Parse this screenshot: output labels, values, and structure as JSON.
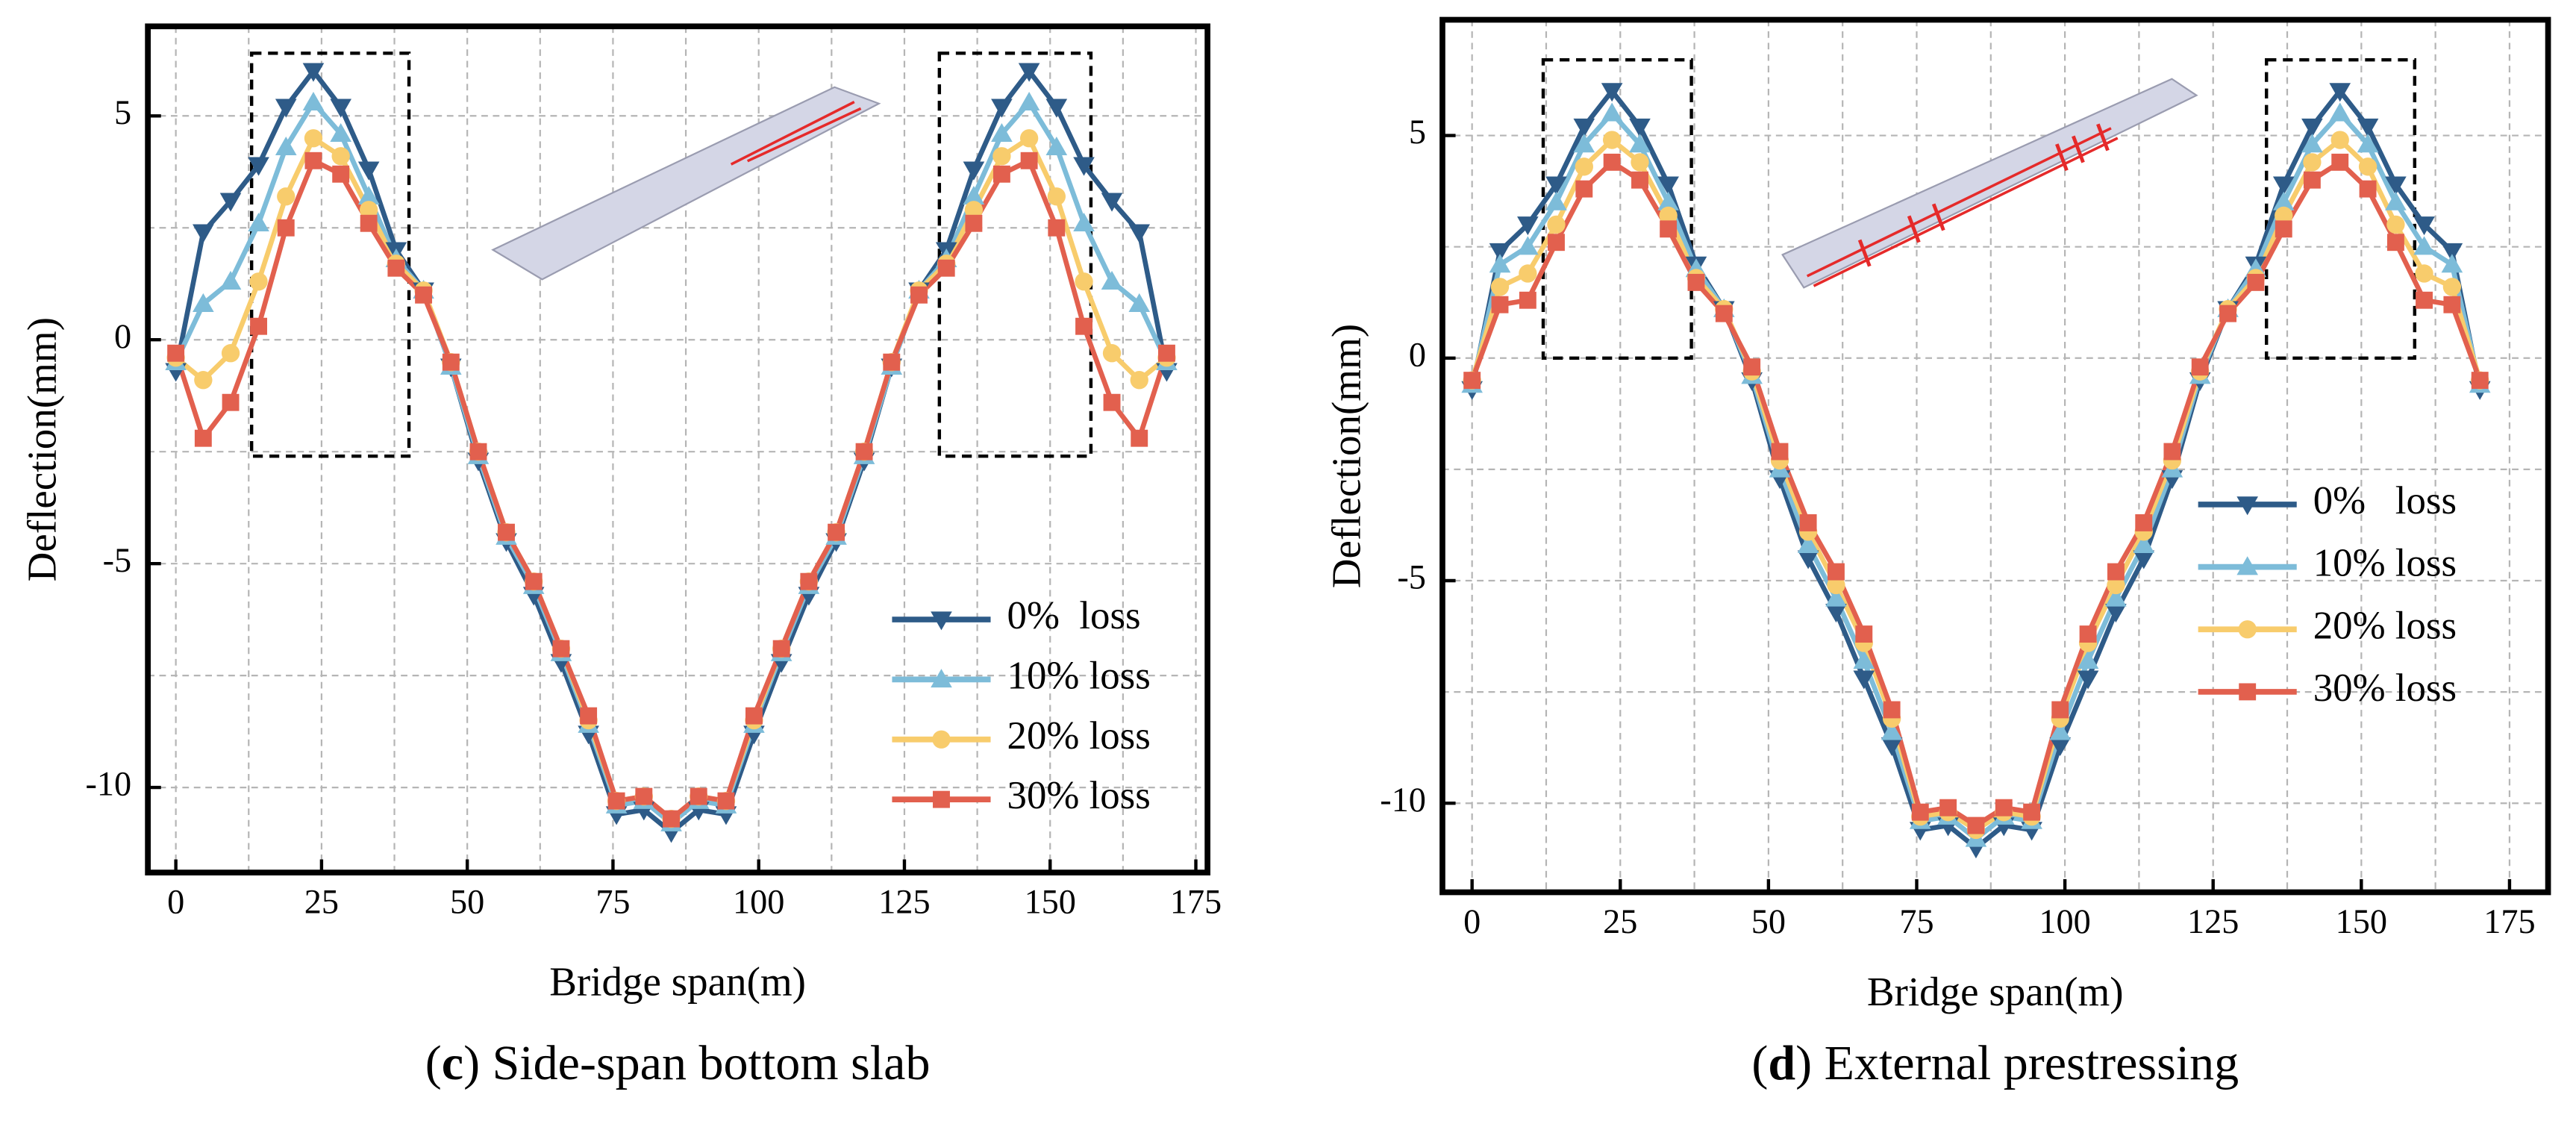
{
  "chart_data": [
    {
      "type": "line",
      "caption_parts": [
        "(",
        "c",
        ") Side-span bottom slab"
      ],
      "xlabel": "Bridge span(m)",
      "ylabel": "Deflection(mm)",
      "x": [
        0,
        4.7,
        9.4,
        14.2,
        18.9,
        23.6,
        28.3,
        33.1,
        37.8,
        42.5,
        47.2,
        51.9,
        56.7,
        61.4,
        66.1,
        70.8,
        75.6,
        80.3,
        85,
        89.7,
        94.4,
        99.2,
        103.9,
        108.6,
        113.3,
        118.1,
        122.8,
        127.5,
        132.2,
        136.9,
        141.7,
        146.4,
        151.1,
        155.8,
        160.6,
        165.3,
        170
      ],
      "series": [
        {
          "name": "0%  loss",
          "color": "#2e5b88",
          "marker": "triangle-down",
          "values": [
            -0.7,
            2.4,
            3.1,
            3.9,
            5.2,
            6.0,
            5.2,
            3.8,
            2.0,
            1.1,
            -0.6,
            -2.7,
            -4.5,
            -5.7,
            -7.2,
            -8.8,
            -10.6,
            -10.5,
            -11.0,
            -10.5,
            -10.6,
            -8.8,
            -7.2,
            -5.7,
            -4.5,
            -2.7,
            -0.6,
            1.1,
            2.0,
            3.8,
            5.2,
            6.0,
            5.2,
            3.9,
            3.1,
            2.4,
            -0.7
          ]
        },
        {
          "name": "10% loss",
          "color": "#7dbcd9",
          "marker": "triangle-up",
          "values": [
            -0.5,
            0.8,
            1.3,
            2.6,
            4.3,
            5.3,
            4.6,
            3.2,
            1.8,
            1.1,
            -0.6,
            -2.6,
            -4.4,
            -5.5,
            -7.0,
            -8.6,
            -10.4,
            -10.3,
            -10.8,
            -10.3,
            -10.4,
            -8.6,
            -7.0,
            -5.5,
            -4.4,
            -2.6,
            -0.6,
            1.1,
            1.8,
            3.2,
            4.6,
            5.3,
            4.3,
            2.6,
            1.3,
            0.8,
            -0.5
          ]
        },
        {
          "name": "20% loss",
          "color": "#f8cc6c",
          "marker": "circle",
          "values": [
            -0.4,
            -0.9,
            -0.3,
            1.3,
            3.2,
            4.5,
            4.1,
            2.9,
            1.7,
            1.1,
            -0.5,
            -2.5,
            -4.3,
            -5.4,
            -6.9,
            -8.5,
            -10.3,
            -10.2,
            -10.7,
            -10.2,
            -10.3,
            -8.5,
            -6.9,
            -5.4,
            -4.3,
            -2.5,
            -0.5,
            1.1,
            1.7,
            2.9,
            4.1,
            4.5,
            3.2,
            1.3,
            -0.3,
            -0.9,
            -0.4
          ]
        },
        {
          "name": "30% loss",
          "color": "#e2604e",
          "marker": "square",
          "values": [
            -0.3,
            -2.2,
            -1.4,
            0.3,
            2.5,
            4.0,
            3.7,
            2.6,
            1.6,
            1.0,
            -0.5,
            -2.5,
            -4.3,
            -5.4,
            -6.9,
            -8.4,
            -10.3,
            -10.2,
            -10.7,
            -10.2,
            -10.3,
            -8.4,
            -6.9,
            -5.4,
            -4.3,
            -2.5,
            -0.5,
            1.0,
            1.6,
            2.6,
            3.7,
            4.0,
            2.5,
            0.3,
            -1.4,
            -2.2,
            -0.3
          ]
        }
      ],
      "xlim": [
        -4.8,
        177
      ],
      "ylim": [
        -11.9,
        7.0
      ],
      "xticks": [
        0,
        25,
        50,
        75,
        100,
        125,
        150,
        175
      ],
      "yticks": [
        -10,
        -5,
        0,
        5
      ],
      "minor_xticks": [
        12.5,
        37.5,
        62.5,
        87.5,
        112.5,
        137.5,
        162.5
      ],
      "minor_yticks": [
        -7.5,
        -2.5,
        2.5
      ],
      "grid": true,
      "legend": "lower right"
    },
    {
      "type": "line",
      "caption_parts": [
        "(",
        "d",
        ") External prestressing"
      ],
      "xlabel": "Bridge span(m)",
      "ylabel": "Deflection(mm)",
      "x": [
        0,
        4.7,
        9.4,
        14.2,
        18.9,
        23.6,
        28.3,
        33.1,
        37.8,
        42.5,
        47.2,
        51.9,
        56.7,
        61.4,
        66.1,
        70.8,
        75.6,
        80.3,
        85,
        89.7,
        94.4,
        99.2,
        103.9,
        108.6,
        113.3,
        118.1,
        122.8,
        127.5,
        132.2,
        136.9,
        141.7,
        146.4,
        151.1,
        155.8,
        160.6,
        165.3,
        170
      ],
      "series": [
        {
          "name": "0%   loss",
          "color": "#2e5b88",
          "marker": "triangle-down",
          "values": [
            -0.7,
            2.4,
            3.0,
            3.9,
            5.2,
            6.0,
            5.2,
            3.9,
            2.1,
            1.1,
            -0.5,
            -2.7,
            -4.5,
            -5.7,
            -7.2,
            -8.7,
            -10.6,
            -10.5,
            -11.0,
            -10.5,
            -10.6,
            -8.7,
            -7.2,
            -5.7,
            -4.5,
            -2.7,
            -0.5,
            1.1,
            2.1,
            3.9,
            5.2,
            6.0,
            5.2,
            3.9,
            3.0,
            2.4,
            -0.7
          ]
        },
        {
          "name": "10% loss",
          "color": "#7dbcd9",
          "marker": "triangle-up",
          "values": [
            -0.6,
            2.1,
            2.5,
            3.5,
            4.8,
            5.5,
            4.8,
            3.5,
            2.0,
            1.1,
            -0.4,
            -2.5,
            -4.2,
            -5.4,
            -6.8,
            -8.4,
            -10.4,
            -10.3,
            -10.8,
            -10.3,
            -10.4,
            -8.4,
            -6.8,
            -5.4,
            -4.2,
            -2.5,
            -0.4,
            1.1,
            2.0,
            3.5,
            4.8,
            5.5,
            4.8,
            3.5,
            2.5,
            2.1,
            -0.6
          ]
        },
        {
          "name": "20% loss",
          "color": "#f8cc6c",
          "marker": "circle",
          "values": [
            -0.5,
            1.6,
            1.9,
            3.0,
            4.3,
            4.9,
            4.4,
            3.2,
            1.8,
            1.1,
            -0.3,
            -2.3,
            -3.9,
            -5.1,
            -6.4,
            -8.1,
            -10.3,
            -10.2,
            -10.6,
            -10.2,
            -10.3,
            -8.1,
            -6.4,
            -5.1,
            -3.9,
            -2.3,
            -0.3,
            1.1,
            1.8,
            3.2,
            4.4,
            4.9,
            4.3,
            3.0,
            1.9,
            1.6,
            -0.5
          ]
        },
        {
          "name": "30% loss",
          "color": "#e2604e",
          "marker": "square",
          "values": [
            -0.5,
            1.2,
            1.3,
            2.6,
            3.8,
            4.4,
            4.0,
            2.9,
            1.7,
            1.0,
            -0.2,
            -2.1,
            -3.7,
            -4.8,
            -6.2,
            -7.9,
            -10.2,
            -10.1,
            -10.5,
            -10.1,
            -10.2,
            -7.9,
            -6.2,
            -4.8,
            -3.7,
            -2.1,
            -0.2,
            1.0,
            1.7,
            2.9,
            4.0,
            4.4,
            3.8,
            2.6,
            1.3,
            1.2,
            -0.5
          ]
        }
      ],
      "xlim": [
        -5,
        181.5
      ],
      "ylim": [
        -12.0,
        7.6
      ],
      "xticks": [
        0,
        25,
        50,
        75,
        100,
        125,
        150,
        175
      ],
      "yticks": [
        -10,
        -5,
        0,
        5
      ],
      "minor_xticks": [
        12.5,
        37.5,
        62.5,
        87.5,
        112.5,
        137.5,
        162.5
      ],
      "minor_yticks": [
        -7.5,
        -2.5,
        2.5
      ],
      "grid": true,
      "legend": "center right"
    }
  ]
}
